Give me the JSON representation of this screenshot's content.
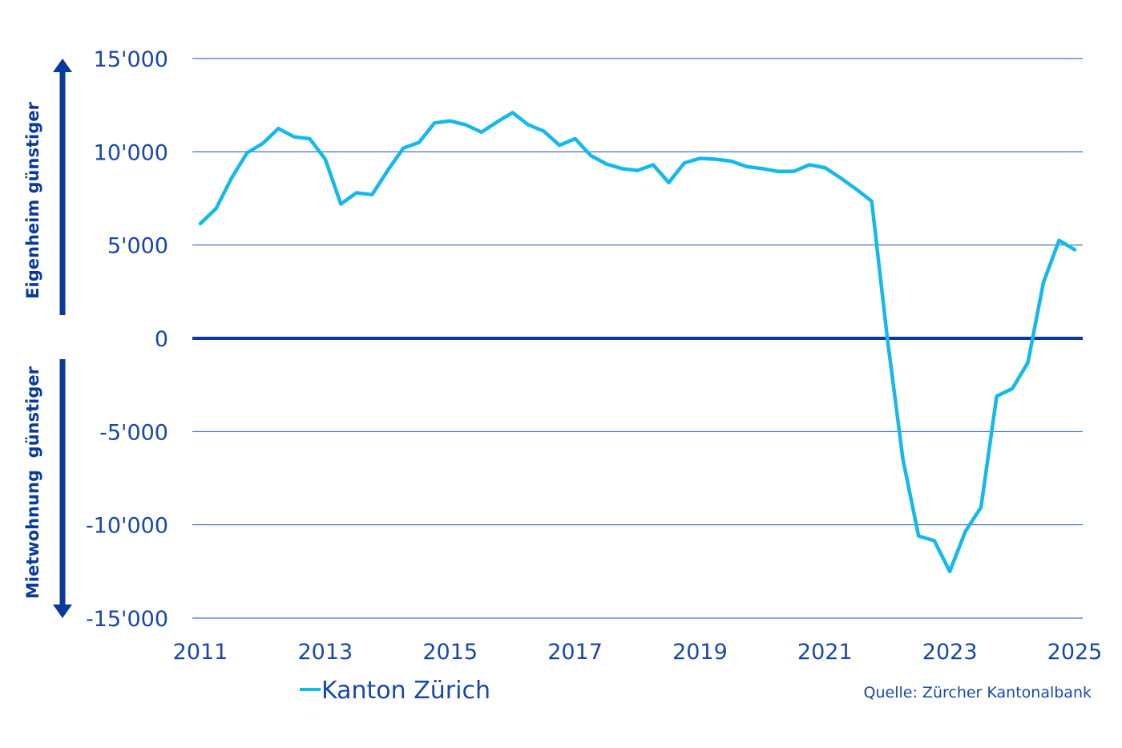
{
  "chart_data": {
    "type": "line",
    "title": "",
    "xlabel": "",
    "ylabel": "",
    "xlim": [
      2011,
      2025
    ],
    "ylim": [
      -15000,
      15000
    ],
    "x_ticks": [
      "2011",
      "2013",
      "2015",
      "2017",
      "2019",
      "2021",
      "2023",
      "2025"
    ],
    "y_ticks": [
      "15'000",
      "10'000",
      "5'000",
      "0",
      "-5'000",
      "-10'000",
      "-15'000"
    ],
    "y_tick_values": [
      15000,
      10000,
      5000,
      0,
      -5000,
      -10000,
      -15000
    ],
    "grid": true,
    "zero_line": true,
    "upper_annotation": "Eigenheim günstiger",
    "lower_annotation": "Mietwohnung  günstiger",
    "series": [
      {
        "name": "Kanton Zürich",
        "color": "#14b9eb",
        "x": [
          2011.0,
          2011.25,
          2011.5,
          2011.75,
          2012.0,
          2012.25,
          2012.5,
          2012.75,
          2013.0,
          2013.25,
          2013.5,
          2013.75,
          2014.0,
          2014.25,
          2014.5,
          2014.75,
          2015.0,
          2015.25,
          2015.5,
          2015.75,
          2016.0,
          2016.25,
          2016.5,
          2016.75,
          2017.0,
          2017.25,
          2017.5,
          2017.75,
          2018.0,
          2018.25,
          2018.5,
          2018.75,
          2019.0,
          2019.25,
          2019.5,
          2019.75,
          2020.0,
          2020.25,
          2020.5,
          2020.75,
          2021.0,
          2021.25,
          2021.5,
          2021.75,
          2022.0,
          2022.25,
          2022.5,
          2022.75,
          2023.0,
          2023.25,
          2023.5,
          2023.75,
          2024.0,
          2024.25,
          2024.5,
          2024.75,
          2025.0
        ],
        "y": [
          6150,
          6950,
          8600,
          9950,
          10450,
          11250,
          10800,
          10700,
          9600,
          7200,
          7800,
          7700,
          9000,
          10200,
          10500,
          11550,
          11650,
          11450,
          11050,
          11600,
          12100,
          11450,
          11100,
          10350,
          10700,
          9800,
          9350,
          9100,
          9000,
          9300,
          8350,
          9400,
          9650,
          9600,
          9500,
          9200,
          9100,
          8950,
          8950,
          9300,
          9150,
          8600,
          8000,
          7350,
          0,
          -6500,
          -10600,
          -10850,
          -12500,
          -10350,
          -9050,
          -3100,
          -2700,
          -1300,
          3000,
          5250,
          4750
        ]
      }
    ],
    "legend_position": "bottom-left",
    "source": "Quelle: Zürcher Kantonalbank"
  }
}
